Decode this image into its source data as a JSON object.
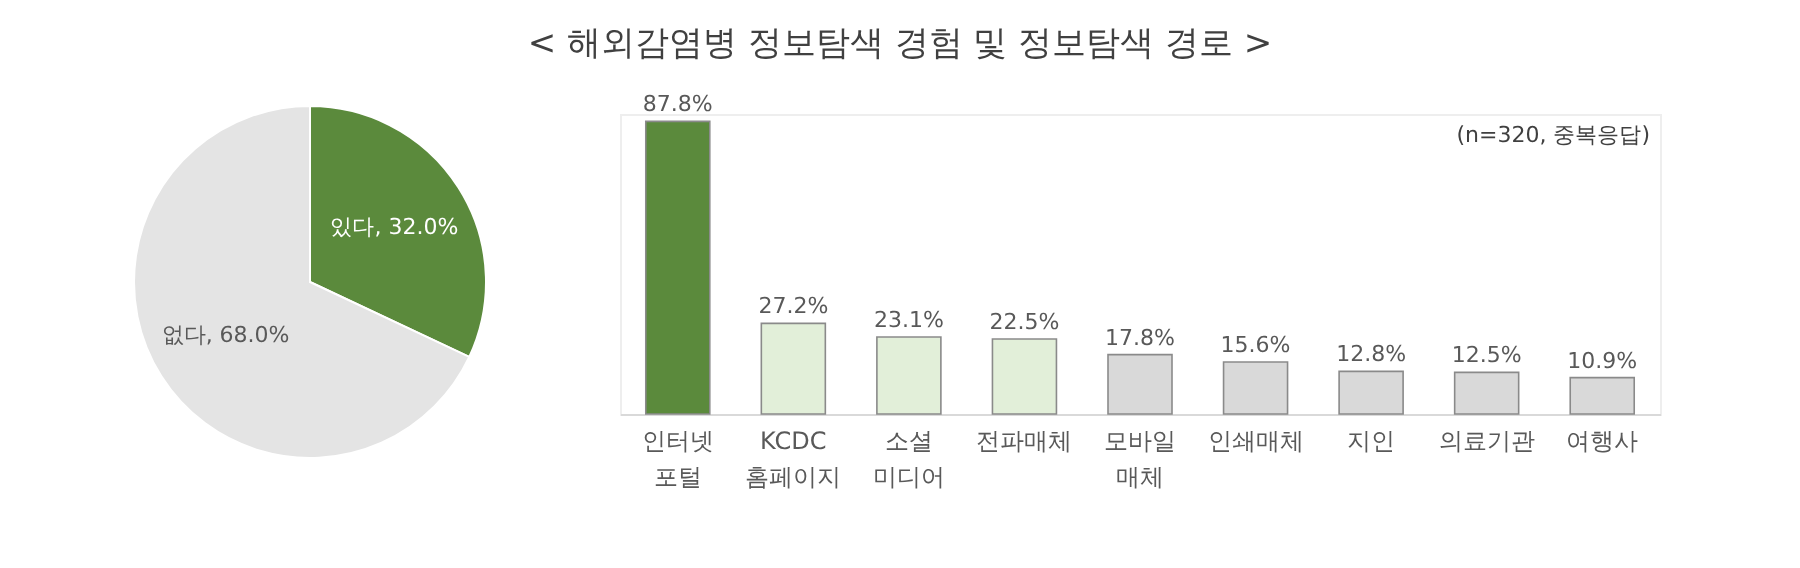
{
  "chart_data": [
    {
      "type": "pie",
      "categories": [
        "있다",
        "없다"
      ],
      "values": [
        32.0,
        68.0
      ],
      "colors": [
        "#5b8a3c",
        "#e4e4e4"
      ],
      "value_labels": [
        "32.0%",
        "68.0%"
      ]
    },
    {
      "type": "bar",
      "title": "< 해외감염병 정보탐색 경험 및 정보탐색 경로 >",
      "categories": [
        "인터넷 포털",
        "KCDC 홈페이지",
        "소셜 미디어",
        "전파매체",
        "모바일 매체",
        "인쇄매체",
        "지인",
        "의료기관",
        "여행사"
      ],
      "values": [
        87.8,
        27.2,
        23.1,
        22.5,
        17.8,
        15.6,
        12.8,
        12.5,
        10.9
      ],
      "colors": [
        "#5b8a3c",
        "#e2efd9",
        "#e2efd9",
        "#e2efd9",
        "#d9d9d9",
        "#d9d9d9",
        "#d9d9d9",
        "#d9d9d9",
        "#d9d9d9"
      ],
      "value_labels": [
        "87.8%",
        "27.2%",
        "23.1%",
        "22.5%",
        "17.8%",
        "15.6%",
        "12.8%",
        "12.5%",
        "10.9%"
      ],
      "annotations": [
        "(n=320, 중복응답)"
      ]
    }
  ]
}
